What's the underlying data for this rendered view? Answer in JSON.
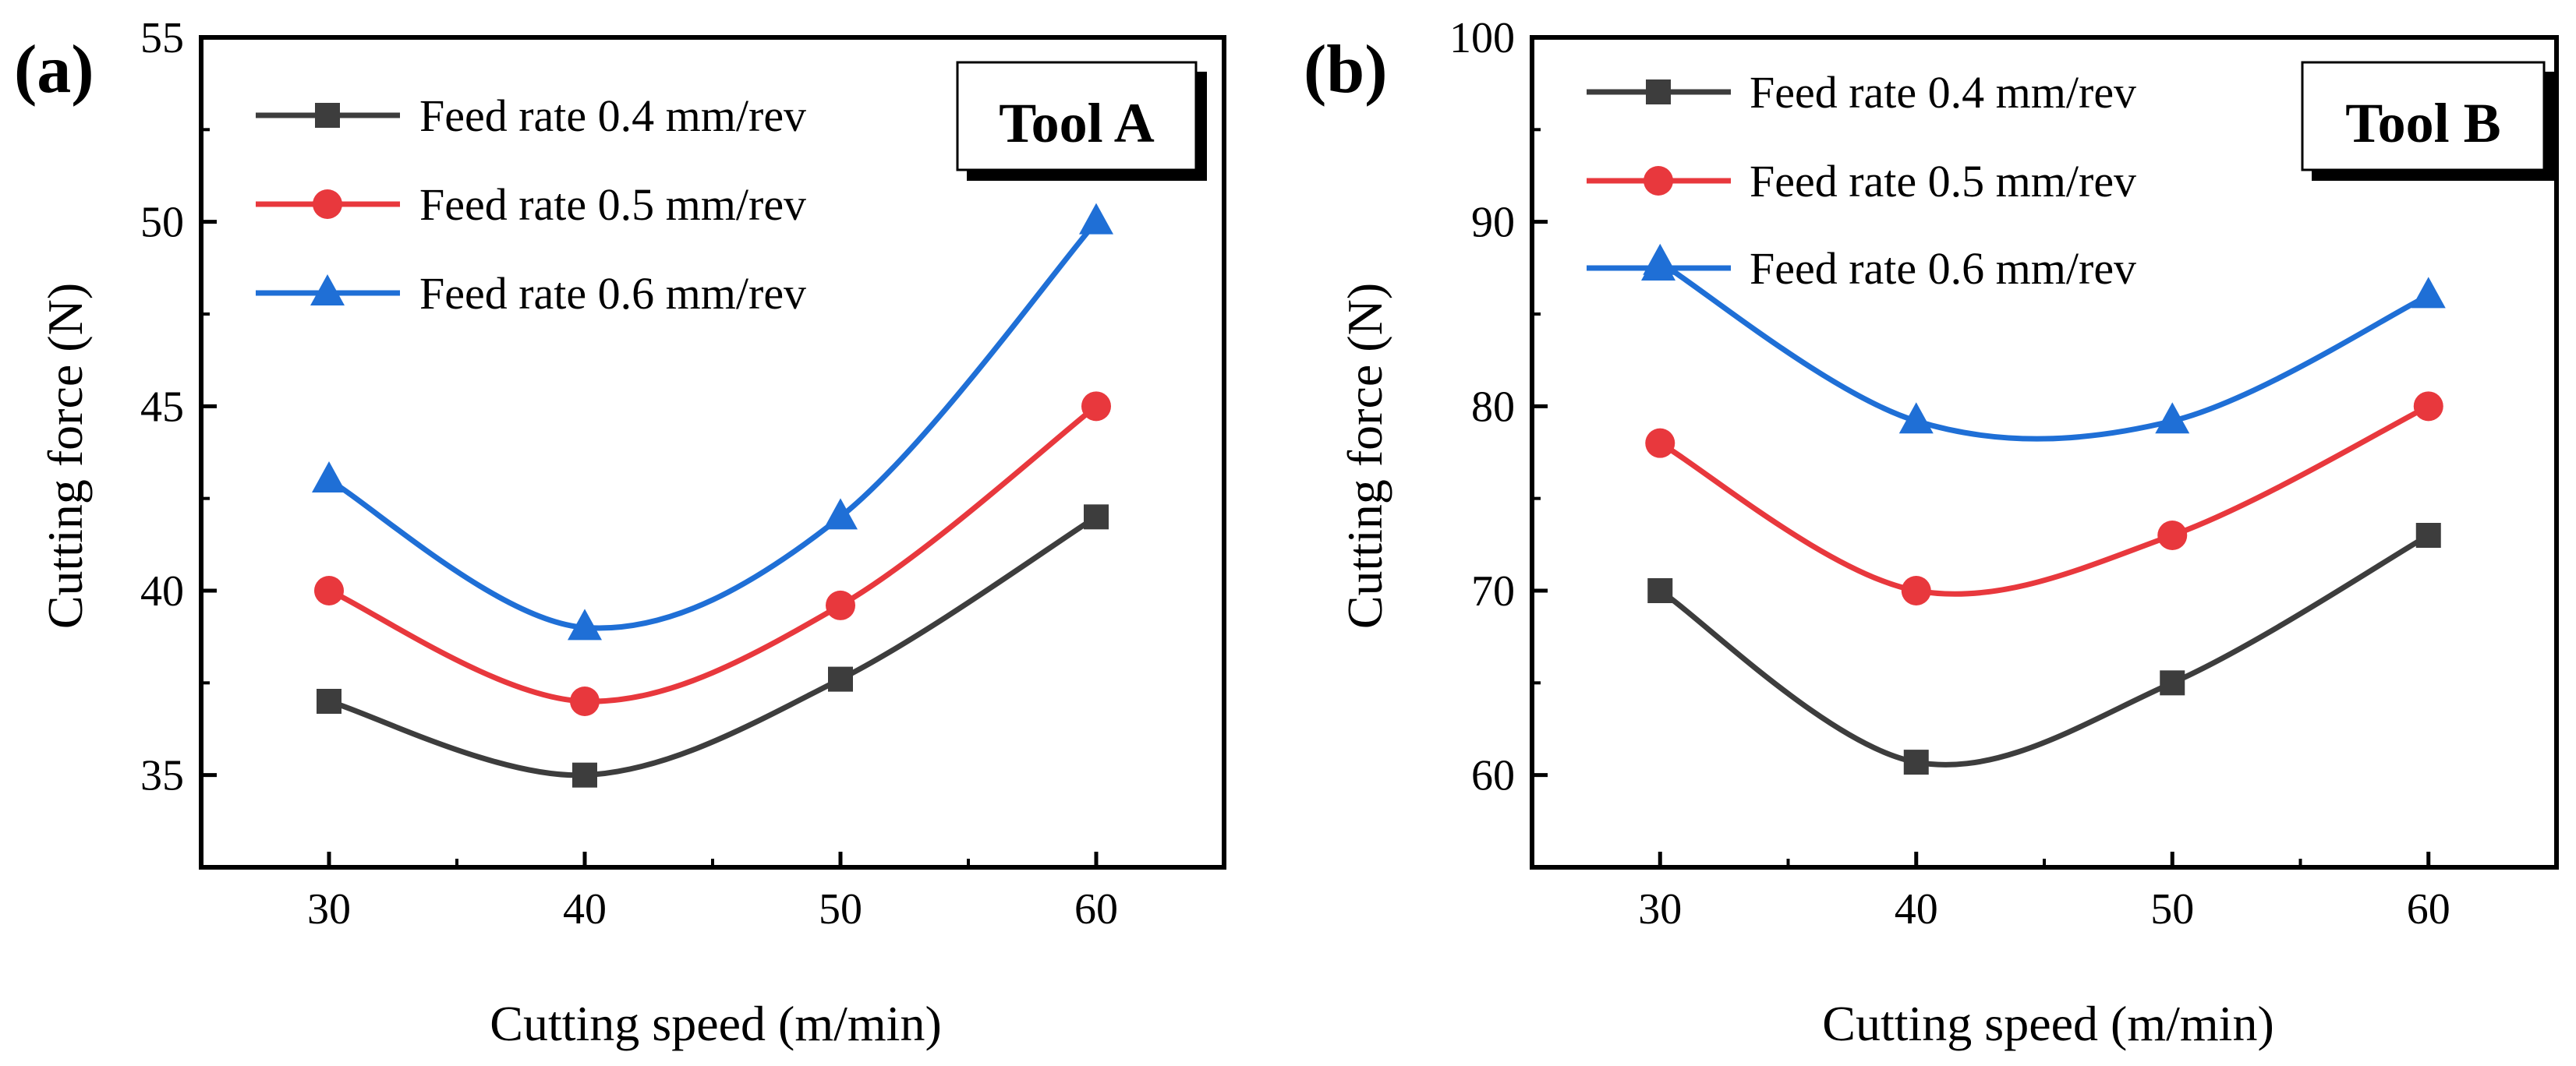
{
  "chart_data": [
    {
      "type": "line",
      "panel_label": "(a)",
      "tool_label": "Tool A",
      "xlabel": "Cutting speed (m/min)",
      "ylabel": "Cutting force (N)",
      "x": [
        30,
        40,
        50,
        60
      ],
      "xlim": [
        25,
        65
      ],
      "ylim": [
        32.5,
        55
      ],
      "xticks": [
        30,
        40,
        50,
        60
      ],
      "yticks": [
        35,
        40,
        45,
        50,
        55
      ],
      "grid": false,
      "legend_position": "top-left",
      "series": [
        {
          "name": "Feed rate 0.4 mm/rev",
          "marker": "square",
          "color": "#3d3d3d",
          "values": [
            37,
            35,
            37.6,
            42
          ]
        },
        {
          "name": "Feed rate 0.5 mm/rev",
          "marker": "circle",
          "color": "#e8383d",
          "values": [
            40,
            37,
            39.6,
            45
          ]
        },
        {
          "name": "Feed rate 0.6 mm/rev",
          "marker": "triangle",
          "color": "#1f6fd6",
          "values": [
            43,
            39,
            42,
            50
          ]
        }
      ]
    },
    {
      "type": "line",
      "panel_label": "(b)",
      "tool_label": "Tool B",
      "xlabel": "Cutting speed (m/min)",
      "ylabel": "Cutting force (N)",
      "x": [
        30,
        40,
        50,
        60
      ],
      "xlim": [
        25,
        65
      ],
      "ylim": [
        55,
        100
      ],
      "xticks": [
        30,
        40,
        50,
        60
      ],
      "yticks": [
        60,
        70,
        80,
        90,
        100
      ],
      "grid": false,
      "legend_position": "top-left",
      "series": [
        {
          "name": "Feed rate 0.4 mm/rev",
          "marker": "square",
          "color": "#3d3d3d",
          "values": [
            70,
            60.7,
            65,
            73
          ]
        },
        {
          "name": "Feed rate 0.5 mm/rev",
          "marker": "circle",
          "color": "#e8383d",
          "values": [
            78,
            70,
            73,
            80
          ]
        },
        {
          "name": "Feed rate 0.6 mm/rev",
          "marker": "triangle",
          "color": "#1f6fd6",
          "values": [
            87.8,
            79.2,
            79.2,
            86
          ]
        }
      ]
    }
  ]
}
